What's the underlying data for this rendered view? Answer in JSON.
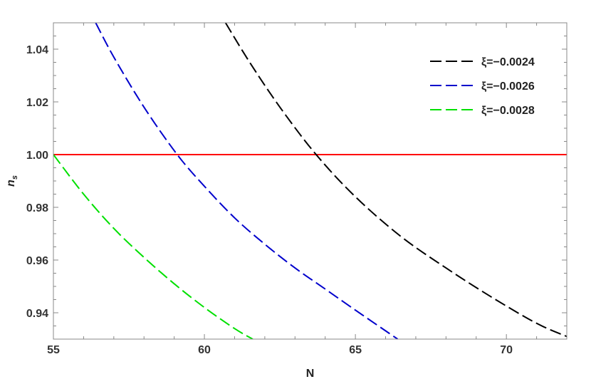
{
  "chart_data": {
    "type": "line",
    "title": "",
    "xlabel": "N",
    "ylabel_base": "n",
    "ylabel_sub": "s",
    "xlim": [
      55,
      72
    ],
    "ylim": [
      0.93,
      1.05
    ],
    "x_ticks": [
      55,
      60,
      65,
      70
    ],
    "x_tick_labels": [
      "55",
      "60",
      "65",
      "70"
    ],
    "y_ticks": [
      0.94,
      0.96,
      0.98,
      1.0,
      1.02,
      1.04
    ],
    "y_tick_labels": [
      "0.94",
      "0.96",
      "0.98",
      "1.00",
      "1.02",
      "1.04"
    ],
    "grid": false,
    "legend_position": "top-right",
    "reference_line": {
      "y": 1.0,
      "color": "#ff0000"
    },
    "series": [
      {
        "name": "ξ=−0.0024",
        "color": "#000000",
        "x": [
          60.7,
          61.5,
          62.5,
          63.7,
          65.0,
          66.5,
          68.0,
          69.5,
          71.0,
          72.0
        ],
        "y": [
          1.05,
          1.035,
          1.018,
          1.0,
          0.984,
          0.969,
          0.957,
          0.946,
          0.936,
          0.931
        ]
      },
      {
        "name": "ξ=−0.0026",
        "color": "#0000cc",
        "x": [
          56.4,
          57.0,
          58.0,
          59.1,
          60.0,
          61.0,
          62.0,
          63.0,
          64.0,
          65.0,
          66.4
        ],
        "y": [
          1.05,
          1.037,
          1.018,
          1.0,
          0.988,
          0.976,
          0.966,
          0.957,
          0.949,
          0.941,
          0.93
        ]
      },
      {
        "name": "ξ=−0.0028",
        "color": "#00e000",
        "x": [
          55.0,
          56.0,
          57.0,
          58.0,
          59.0,
          60.0,
          61.0,
          61.6
        ],
        "y": [
          1.0,
          0.985,
          0.972,
          0.961,
          0.951,
          0.942,
          0.934,
          0.93
        ]
      }
    ]
  }
}
